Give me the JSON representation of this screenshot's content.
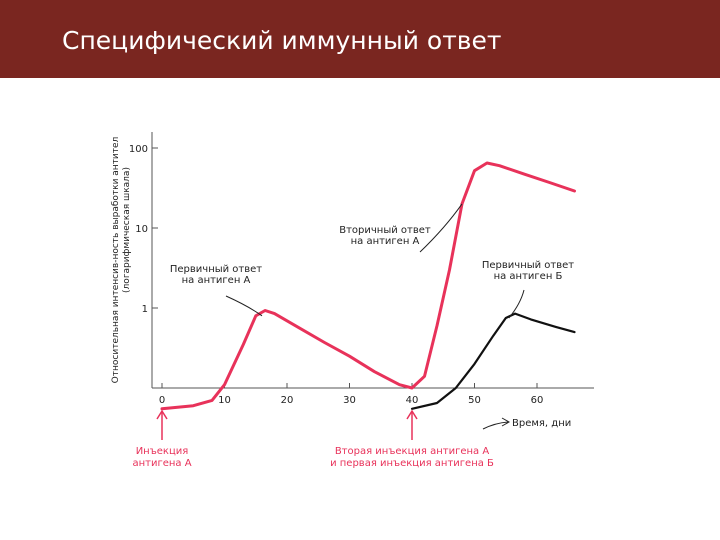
{
  "slide": {
    "title": "Специфический иммунный ответ"
  },
  "colors": {
    "header": "#7a2620",
    "primary_curve": "#e8325a",
    "secondary_curve": "#111111",
    "arrow": "#e8325a",
    "axis": "#555555"
  },
  "chart_data": {
    "type": "line",
    "ylabel_line1": "Относительная интенсив-ность выработки антител",
    "ylabel_line2": "(логарифмическая шкала)",
    "xlabel": "Время, дни",
    "x_ticks": [
      0,
      10,
      20,
      30,
      40,
      50,
      60
    ],
    "y_ticks": [
      1,
      10,
      100
    ],
    "y_scale": "log",
    "xlim": [
      0,
      67
    ],
    "ylim": [
      0.05,
      150
    ],
    "grid": false,
    "series": [
      {
        "name": "antigen_a",
        "values": [
          [
            0,
            0.055
          ],
          [
            5,
            0.06
          ],
          [
            8,
            0.07
          ],
          [
            10,
            0.11
          ],
          [
            13,
            0.35
          ],
          [
            15,
            0.8
          ],
          [
            16.5,
            0.93
          ],
          [
            18,
            0.85
          ],
          [
            22,
            0.56
          ],
          [
            26,
            0.37
          ],
          [
            30,
            0.25
          ],
          [
            34,
            0.16
          ],
          [
            38,
            0.11
          ],
          [
            40,
            0.1
          ],
          [
            42,
            0.14
          ],
          [
            44,
            0.6
          ],
          [
            46,
            3
          ],
          [
            48,
            20
          ],
          [
            50,
            52
          ],
          [
            52,
            65
          ],
          [
            54,
            60
          ],
          [
            58,
            47
          ],
          [
            62,
            37
          ],
          [
            66,
            29
          ]
        ]
      },
      {
        "name": "antigen_b",
        "values": [
          [
            40,
            0.055
          ],
          [
            44,
            0.065
          ],
          [
            47,
            0.1
          ],
          [
            50,
            0.2
          ],
          [
            53,
            0.45
          ],
          [
            55,
            0.75
          ],
          [
            56.5,
            0.85
          ],
          [
            59,
            0.72
          ],
          [
            63,
            0.58
          ],
          [
            66,
            0.5
          ]
        ]
      }
    ],
    "annotations": [
      {
        "text_lines": [
          "Первичный ответ",
          "на антиген А"
        ],
        "target": [
          16,
          0.8
        ]
      },
      {
        "text_lines": [
          "Вторичный ответ",
          "на антиген А"
        ],
        "target": [
          48,
          20
        ]
      },
      {
        "text_lines": [
          "Первичный ответ",
          "на антиген Б"
        ],
        "target": [
          55.5,
          0.75
        ]
      }
    ],
    "injections": [
      {
        "x": 0,
        "text_lines": [
          "Инъекция",
          "антигена А"
        ]
      },
      {
        "x": 40,
        "text_lines": [
          "Вторая инъекция антигена А",
          "и первая инъекция антигена Б"
        ]
      }
    ]
  }
}
